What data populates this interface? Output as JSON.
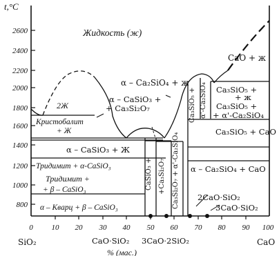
{
  "title": "",
  "y_axis": {
    "label": "t,°C",
    "ticks": [
      "2600",
      "2400",
      "2200",
      "2000",
      "1800",
      "1600",
      "1400",
      "1200",
      "1000",
      "800"
    ]
  },
  "x_axis": {
    "ticks": [
      "0",
      "10",
      "20",
      "30",
      "40",
      "50",
      "60",
      "70",
      "80",
      "90",
      "100"
    ],
    "label": "% (мас.)",
    "left_end": "SiO₂",
    "right_end": "CaO",
    "bottom_markers": [
      "CaO·SiO₂",
      "3CaO·2SiO₂"
    ]
  },
  "regions": {
    "liquid": "Жидкость (ж)",
    "two_liquids": "2Ж",
    "cristobalite_l1": "Кристобалит",
    "cristobalite_l2": "+ Ж",
    "alpha_cs_l": "α – CaSiO₃ + Ж",
    "tridymite_alpha_cs": "Тридимит + α-CaSiO₃",
    "tridymite_beta_l1": "Тридимит +",
    "tridymite_beta_l2": "+ β – CaSiO₃",
    "quartz_beta": "α – Кварц + β – CaSiO₃",
    "a_c2s_l": "α – Ca₂SiO₄ + ж",
    "acs_c3s2_l1": "α – CaSiO₃ +",
    "acs_c3s2_l2": "+ Ca₃Si₂O₇",
    "cao_l": "CaO + ж",
    "c3s_l1": "Ca₃SiO₅ +",
    "c3s_l2": "+ ж",
    "c3s_ac2s_l1": "Ca₃SiO₅ +",
    "c3s_ac2s_l2": "+ α'-Ca₂SiO₄",
    "c3s_cao": "Ca₃SiO₅ + CaO",
    "ac2s_cao": "α – Ca₂SiO₄ + CaO",
    "v1": "CaSiO₃ +",
    "v2": "+Ca₃Si₂O₇",
    "v3": "Ca₃Si₂O₇ + α'-Ca₂SiO₄",
    "v4": "Ca₃SiO₅ +",
    "v5": "α'-Ca₂SiO₄"
  },
  "compound_labels": {
    "c2s": "2CaO·SiO₂",
    "c3s": "3CaO·SiO₂"
  }
}
